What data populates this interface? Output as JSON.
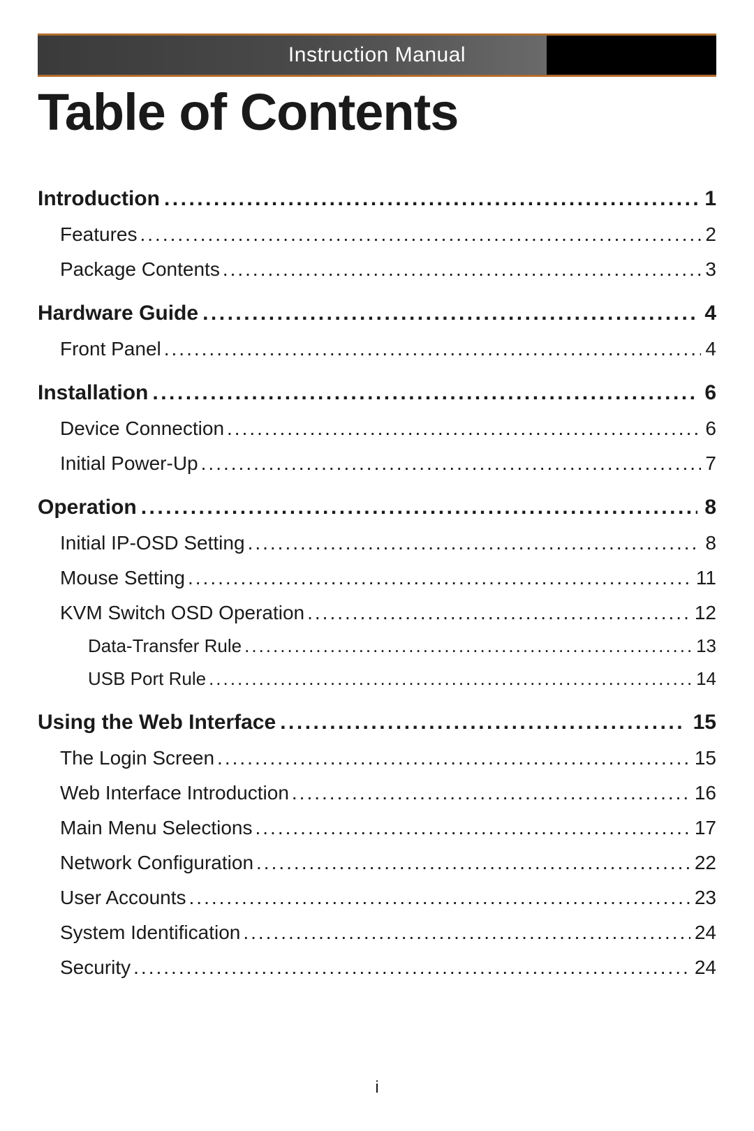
{
  "header": {
    "label": "Instruction Manual"
  },
  "title": "Table of Contents",
  "page_number": "i",
  "colors": {
    "text": "#1a1a1a",
    "header_text": "#ffffff",
    "header_border": "#b06a2a",
    "header_grad_start": "#3a3a3a",
    "header_grad_mid": "#6a6a6a",
    "header_grad_end": "#000000",
    "background": "#ffffff"
  },
  "typography": {
    "title_font": "Arial Narrow",
    "title_size_pt": 56,
    "title_weight": 700,
    "header_font": "Arial Narrow",
    "header_size_pt": 22,
    "lvl0_size_pt": 22,
    "lvl0_weight": 700,
    "lvl1_size_pt": 21,
    "lvl1_weight": 400,
    "lvl2_size_pt": 19,
    "lvl2_weight": 400,
    "page_num_size_pt": 18
  },
  "toc": [
    {
      "level": 0,
      "label": "Introduction ",
      "page": "1"
    },
    {
      "level": 1,
      "label": "Features ",
      "page": "2"
    },
    {
      "level": 1,
      "label": "Package Contents ",
      "page": "3"
    },
    {
      "level": 0,
      "label": "Hardware Guide",
      "page": "4"
    },
    {
      "level": 1,
      "label": "Front Panel ",
      "page": "4"
    },
    {
      "level": 0,
      "label": "Installation",
      "page": "6"
    },
    {
      "level": 1,
      "label": "Device Connection ",
      "page": "6"
    },
    {
      "level": 1,
      "label": "Initial Power-Up ",
      "page": "7"
    },
    {
      "level": 0,
      "label": "Operation",
      "page": "8"
    },
    {
      "level": 1,
      "label": "Initial IP-OSD Setting",
      "page": "8"
    },
    {
      "level": 1,
      "label": "Mouse Setting",
      "page": "11"
    },
    {
      "level": 1,
      "label": "KVM Switch OSD Operation",
      "page": "12"
    },
    {
      "level": 2,
      "label": "Data-Transfer Rule ",
      "page": "13"
    },
    {
      "level": 2,
      "label": "USB Port Rule ",
      "page": "14"
    },
    {
      "level": 0,
      "label": "Using the Web Interface",
      "page": "15"
    },
    {
      "level": 1,
      "label": "The Login Screen ",
      "page": "15"
    },
    {
      "level": 1,
      "label": "Web Interface Introduction",
      "page": "16"
    },
    {
      "level": 1,
      "label": "Main Menu Selections ",
      "page": "17"
    },
    {
      "level": 1,
      "label": "Network Configuration ",
      "page": "22"
    },
    {
      "level": 1,
      "label": "User Accounts ",
      "page": "23"
    },
    {
      "level": 1,
      "label": "System Identification ",
      "page": "24"
    },
    {
      "level": 1,
      "label": "Security ",
      "page": "24"
    }
  ]
}
